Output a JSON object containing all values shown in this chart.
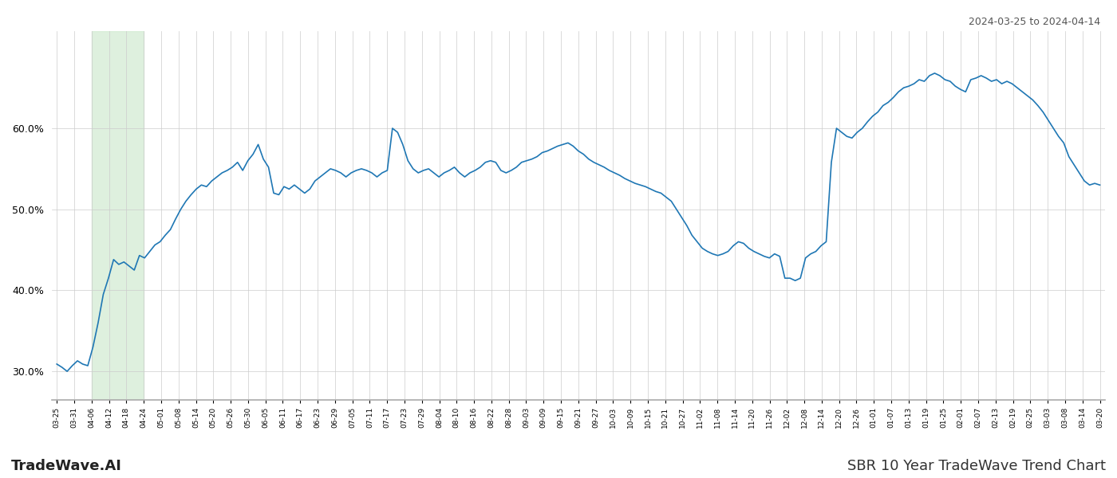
{
  "title_top_right": "2024-03-25 to 2024-04-14",
  "title_bottom_left": "TradeWave.AI",
  "title_bottom_right": "SBR 10 Year TradeWave Trend Chart",
  "line_color": "#1f77b4",
  "line_width": 1.2,
  "highlight_color": "#d6edd6",
  "highlight_alpha": 0.8,
  "background_color": "#ffffff",
  "grid_color": "#cccccc",
  "ylim": [
    0.265,
    0.72
  ],
  "yticks": [
    0.3,
    0.4,
    0.5,
    0.6
  ],
  "highlight_xstart": 4,
  "highlight_xend": 12,
  "x_labels": [
    "03-25",
    "03-31",
    "04-06",
    "04-12",
    "04-18",
    "04-24",
    "05-01",
    "05-08",
    "05-14",
    "05-20",
    "05-26",
    "05-30",
    "06-05",
    "06-11",
    "06-17",
    "06-23",
    "06-29",
    "07-05",
    "07-11",
    "07-17",
    "07-23",
    "07-29",
    "08-04",
    "08-10",
    "08-16",
    "08-22",
    "08-28",
    "09-03",
    "09-09",
    "09-15",
    "09-21",
    "09-27",
    "10-03",
    "10-09",
    "10-15",
    "10-21",
    "10-27",
    "11-02",
    "11-08",
    "11-14",
    "11-20",
    "11-26",
    "12-02",
    "12-08",
    "12-14",
    "12-20",
    "12-26",
    "01-01",
    "01-07",
    "01-13",
    "01-19",
    "01-25",
    "02-01",
    "02-07",
    "02-13",
    "02-19",
    "02-25",
    "03-03",
    "03-08",
    "03-14",
    "03-20"
  ],
  "values": [
    0.309,
    0.305,
    0.3,
    0.307,
    0.313,
    0.309,
    0.307,
    0.33,
    0.36,
    0.395,
    0.415,
    0.438,
    0.432,
    0.435,
    0.43,
    0.425,
    0.443,
    0.44,
    0.448,
    0.456,
    0.46,
    0.468,
    0.475,
    0.488,
    0.5,
    0.51,
    0.518,
    0.525,
    0.53,
    0.528,
    0.535,
    0.54,
    0.545,
    0.548,
    0.552,
    0.558,
    0.548,
    0.56,
    0.568,
    0.58,
    0.562,
    0.552,
    0.52,
    0.518,
    0.528,
    0.525,
    0.53,
    0.525,
    0.52,
    0.525,
    0.535,
    0.54,
    0.545,
    0.55,
    0.548,
    0.545,
    0.54,
    0.545,
    0.548,
    0.55,
    0.548,
    0.545,
    0.54,
    0.545,
    0.548,
    0.6,
    0.595,
    0.58,
    0.56,
    0.55,
    0.545,
    0.548,
    0.55,
    0.545,
    0.54,
    0.545,
    0.548,
    0.552,
    0.545,
    0.54,
    0.545,
    0.548,
    0.552,
    0.558,
    0.56,
    0.558,
    0.548,
    0.545,
    0.548,
    0.552,
    0.558,
    0.56,
    0.562,
    0.565,
    0.57,
    0.572,
    0.575,
    0.578,
    0.58,
    0.582,
    0.578,
    0.572,
    0.568,
    0.562,
    0.558,
    0.555,
    0.552,
    0.548,
    0.545,
    0.542,
    0.538,
    0.535,
    0.532,
    0.53,
    0.528,
    0.525,
    0.522,
    0.52,
    0.515,
    0.51,
    0.5,
    0.49,
    0.48,
    0.468,
    0.46,
    0.452,
    0.448,
    0.445,
    0.443,
    0.445,
    0.448,
    0.455,
    0.46,
    0.458,
    0.452,
    0.448,
    0.445,
    0.442,
    0.44,
    0.445,
    0.442,
    0.415,
    0.415,
    0.412,
    0.415,
    0.44,
    0.445,
    0.448,
    0.455,
    0.46,
    0.558,
    0.6,
    0.595,
    0.59,
    0.588,
    0.595,
    0.6,
    0.608,
    0.615,
    0.62,
    0.628,
    0.632,
    0.638,
    0.645,
    0.65,
    0.652,
    0.655,
    0.66,
    0.658,
    0.665,
    0.668,
    0.665,
    0.66,
    0.658,
    0.652,
    0.648,
    0.645,
    0.66,
    0.662,
    0.665,
    0.662,
    0.658,
    0.66,
    0.655,
    0.658,
    0.655,
    0.65,
    0.645,
    0.64,
    0.635,
    0.628,
    0.62,
    0.61,
    0.6,
    0.59,
    0.582,
    0.565,
    0.555,
    0.545,
    0.535,
    0.53,
    0.532,
    0.53
  ]
}
